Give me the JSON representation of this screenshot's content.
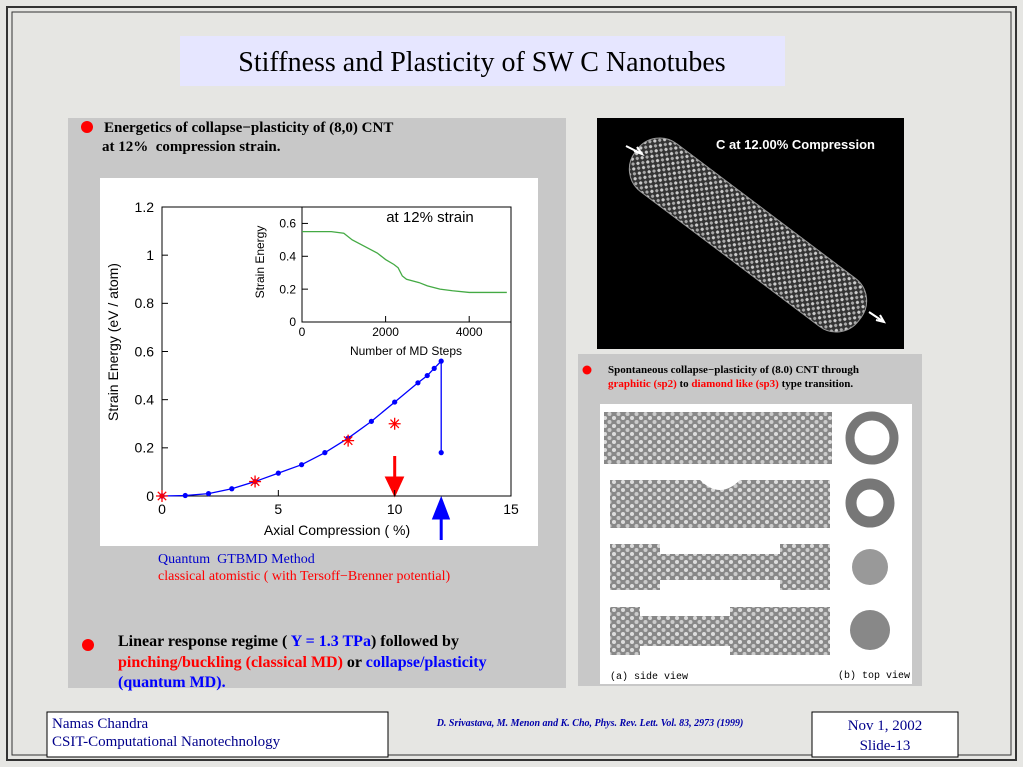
{
  "title": "Stiffness and Plasticity of SW C Nanotubes",
  "left_panel": {
    "heading": [
      "Energetics of collapse−plasticity of (8,0) CNT",
      "at 12%  compression strain."
    ],
    "conclusion": {
      "line1": [
        "Linear response regime ( ",
        "Y = 1.3 TPa",
        ") followed by"
      ],
      "line2": [
        "pinching/buckling (classical MD)",
        " or ",
        "collapse/plasticity"
      ],
      "line3": "(quantum MD)."
    }
  },
  "right_panel": {
    "image_caption": "C at 12.00% Compression",
    "heading": "Spontaneous collapse−plasticity of (8.0) CNT through",
    "subheading": [
      "graphitic (sp2)",
      " to ",
      "diamond like (sp3)",
      " type transition."
    ],
    "side_view": "(a) side view",
    "top_view": "(b) top view"
  },
  "footer": {
    "author": "Namas Chandra",
    "group": "CSIT-Computational Nanotechnology",
    "reference": "D. Srivastava, M. Menon and K. Cho, Phys. Rev. Lett. Vol. 83, 2973 (1999)",
    "date": "Nov 1, 2002",
    "slide": "Slide-13"
  },
  "chart_data": [
    {
      "type": "line",
      "x_label": "Axial Compression ( %)",
      "y_label": "Strain Energy (eV / atom)",
      "xlim": [
        0,
        15
      ],
      "ylim": [
        0,
        1.2
      ],
      "xticks": [
        0,
        5,
        10,
        15
      ],
      "yticks": [
        0,
        0.2,
        0.4,
        0.6,
        0.8,
        1,
        1.2
      ],
      "series": [
        {
          "name": "Quantum  GTBMD Method",
          "color": "#0000ff",
          "marker": "circle",
          "x": [
            0,
            1,
            2,
            3,
            4,
            5,
            6,
            7,
            8,
            9,
            10,
            11,
            11.4,
            11.7,
            12,
            12
          ],
          "values": [
            0,
            0.002,
            0.01,
            0.03,
            0.06,
            0.095,
            0.13,
            0.18,
            0.24,
            0.31,
            0.39,
            0.47,
            0.5,
            0.53,
            0.56,
            0.18
          ]
        },
        {
          "name": "classical atomistic ( with Tersoff−Brenner potential)",
          "color": "#ff0000",
          "marker": "asterisk",
          "x": [
            0,
            4,
            8,
            10
          ],
          "values": [
            0,
            0.06,
            0.23,
            0.3
          ]
        }
      ]
    },
    {
      "type": "line",
      "title": "at 12% strain",
      "x_label": "Number of MD Steps",
      "y_label": "Strain Energy",
      "xlim": [
        0,
        5000
      ],
      "ylim": [
        0,
        0.7
      ],
      "xticks": [
        0,
        2000,
        4000
      ],
      "yticks": [
        0,
        0.2,
        0.4,
        0.6
      ],
      "series": [
        {
          "color": "#44aa44",
          "marker": "none",
          "x": [
            0,
            700,
            1000,
            1200,
            1500,
            1800,
            2000,
            2200,
            2300,
            2400,
            2500,
            2800,
            3000,
            3300,
            3600,
            4000,
            4900
          ],
          "values": [
            0.55,
            0.55,
            0.54,
            0.5,
            0.46,
            0.42,
            0.38,
            0.35,
            0.33,
            0.28,
            0.26,
            0.24,
            0.22,
            0.2,
            0.19,
            0.18,
            0.18
          ]
        }
      ]
    }
  ]
}
